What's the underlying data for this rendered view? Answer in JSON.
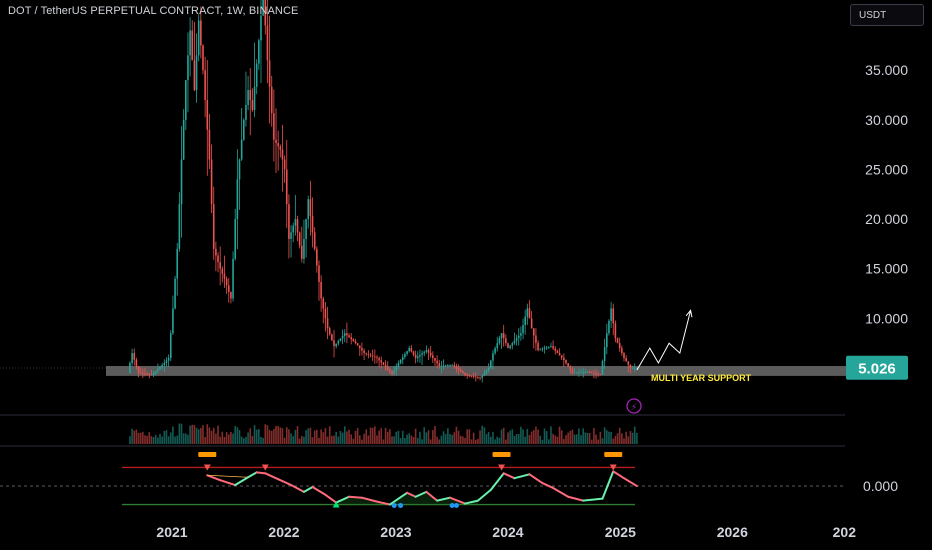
{
  "header": {
    "title": "DOT / TetherUS PERPETUAL CONTRACT, 1W, BINANCE",
    "currency_label": "USDT"
  },
  "price_axis": {
    "ticks": [
      "35.000",
      "30.000",
      "25.000",
      "20.000",
      "15.000",
      "10.000"
    ],
    "current_price": "5.026"
  },
  "oscillator_axis": {
    "zero_label": "0.000"
  },
  "time_axis": {
    "labels": [
      "2021",
      "2022",
      "2023",
      "2024",
      "2025",
      "2026",
      "202"
    ]
  },
  "annotations": {
    "support_label": "MULTI YEAR SUPPORT"
  },
  "colors": {
    "up": "#26a69a",
    "down": "#ef5350",
    "support_zone": "#6b6b6b",
    "support_text": "#ffeb3b",
    "price_badge": "#26a69a",
    "upper_band": "#b71c1c",
    "lower_band": "#2e7d32",
    "marker_orange": "#ff9800",
    "marker_purple": "#9c27b0"
  },
  "chart_data": {
    "type": "candlestick",
    "interval": "1W",
    "ylim": [
      0,
      40
    ],
    "last_price": 5.026,
    "support_zone": [
      4.2,
      5.2
    ],
    "price_path": [
      [
        "2020-08-17",
        4.5
      ],
      [
        "2020-08-31",
        6.5
      ],
      [
        "2020-09-21",
        4.5
      ],
      [
        "2020-11-02",
        4.3
      ],
      [
        "2020-12-14",
        5.5
      ],
      [
        "2020-12-28",
        6.0
      ],
      [
        "2021-01-11",
        11
      ],
      [
        "2021-01-25",
        17
      ],
      [
        "2021-02-08",
        26
      ],
      [
        "2021-02-22",
        34
      ],
      [
        "2021-03-08",
        39
      ],
      [
        "2021-03-22",
        33
      ],
      [
        "2021-04-05",
        40
      ],
      [
        "2021-04-19",
        35
      ],
      [
        "2021-05-10",
        26
      ],
      [
        "2021-05-24",
        17
      ],
      [
        "2021-06-14",
        15
      ],
      [
        "2021-06-28",
        14
      ],
      [
        "2021-07-19",
        12
      ],
      [
        "2021-08-09",
        24
      ],
      [
        "2021-08-30",
        30
      ],
      [
        "2021-09-13",
        33
      ],
      [
        "2021-09-27",
        31
      ],
      [
        "2021-10-18",
        38
      ],
      [
        "2021-11-01",
        43
      ],
      [
        "2021-11-15",
        36
      ],
      [
        "2021-12-06",
        28
      ],
      [
        "2021-12-27",
        27
      ],
      [
        "2022-01-10",
        25
      ],
      [
        "2022-01-24",
        18
      ],
      [
        "2022-02-14",
        20
      ],
      [
        "2022-03-07",
        16
      ],
      [
        "2022-03-28",
        22
      ],
      [
        "2022-04-18",
        17
      ],
      [
        "2022-05-09",
        12
      ],
      [
        "2022-05-30",
        9
      ],
      [
        "2022-06-20",
        7.2
      ],
      [
        "2022-07-25",
        8.5
      ],
      [
        "2022-08-29",
        7.5
      ],
      [
        "2022-09-26",
        6.5
      ],
      [
        "2022-11-07",
        6.0
      ],
      [
        "2022-12-26",
        4.4
      ],
      [
        "2023-01-16",
        5.5
      ],
      [
        "2023-02-20",
        7.0
      ],
      [
        "2023-03-13",
        6.0
      ],
      [
        "2023-04-17",
        6.8
      ],
      [
        "2023-05-29",
        5.2
      ],
      [
        "2023-07-10",
        5.3
      ],
      [
        "2023-08-21",
        4.3
      ],
      [
        "2023-10-09",
        4.0
      ],
      [
        "2023-11-06",
        5.0
      ],
      [
        "2023-11-20",
        6.5
      ],
      [
        "2023-12-18",
        8.5
      ],
      [
        "2024-01-08",
        7.0
      ],
      [
        "2024-02-19",
        8.5
      ],
      [
        "2024-03-11",
        11
      ],
      [
        "2024-03-25",
        9.0
      ],
      [
        "2024-04-15",
        6.8
      ],
      [
        "2024-05-27",
        7.2
      ],
      [
        "2024-07-08",
        5.8
      ],
      [
        "2024-08-05",
        4.5
      ],
      [
        "2024-09-23",
        4.6
      ],
      [
        "2024-11-04",
        4.3
      ],
      [
        "2024-11-25",
        8.5
      ],
      [
        "2024-12-09",
        11
      ],
      [
        "2024-12-23",
        8.0
      ],
      [
        "2025-01-20",
        6.0
      ],
      [
        "2025-02-10",
        5.0
      ],
      [
        "2025-02-24",
        5.026
      ]
    ],
    "projection": [
      [
        "2025-02-24",
        4.8
      ],
      [
        "2025-04-07",
        7.0
      ],
      [
        "2025-05-05",
        5.5
      ],
      [
        "2025-06-09",
        7.5
      ],
      [
        "2025-07-14",
        6.5
      ],
      [
        "2025-08-18",
        10.8
      ]
    ],
    "oscillator": {
      "path": [
        [
          "2021-04-26",
          0.55
        ],
        [
          "2021-06-07",
          0.3
        ],
        [
          "2021-07-26",
          0.05
        ],
        [
          "2021-09-06",
          0.45
        ],
        [
          "2021-10-04",
          0.7
        ],
        [
          "2021-11-01",
          0.65
        ],
        [
          "2021-12-13",
          0.35
        ],
        [
          "2022-01-24",
          0.05
        ],
        [
          "2022-03-07",
          -0.3
        ],
        [
          "2022-04-04",
          -0.05
        ],
        [
          "2022-05-16",
          -0.45
        ],
        [
          "2022-06-20",
          -0.85
        ],
        [
          "2022-08-01",
          -0.55
        ],
        [
          "2022-09-12",
          -0.6
        ],
        [
          "2022-10-31",
          -0.8
        ],
        [
          "2022-12-12",
          -0.95
        ],
        [
          "2023-02-06",
          -0.35
        ],
        [
          "2023-03-06",
          -0.55
        ],
        [
          "2023-04-10",
          -0.3
        ],
        [
          "2023-05-15",
          -0.75
        ],
        [
          "2023-06-26",
          -0.6
        ],
        [
          "2023-08-14",
          -0.9
        ],
        [
          "2023-09-25",
          -0.75
        ],
        [
          "2023-11-06",
          -0.2
        ],
        [
          "2023-12-18",
          0.65
        ],
        [
          "2024-01-22",
          0.4
        ],
        [
          "2024-03-11",
          0.6
        ],
        [
          "2024-04-22",
          0.15
        ],
        [
          "2024-05-27",
          -0.1
        ],
        [
          "2024-07-15",
          -0.55
        ],
        [
          "2024-09-02",
          -0.75
        ],
        [
          "2024-11-04",
          -0.65
        ],
        [
          "2024-12-09",
          0.75
        ],
        [
          "2025-01-13",
          0.4
        ],
        [
          "2025-02-24",
          0.0
        ]
      ],
      "upper_band": 0.95,
      "lower_band": -0.95,
      "sell_markers": [
        "2021-04-26",
        "2021-11-01",
        "2023-12-11",
        "2024-12-09"
      ],
      "buy_markers": [
        "2022-06-20"
      ],
      "dot_markers": [
        "2022-12-26",
        "2023-01-16",
        "2023-07-03",
        "2023-07-17"
      ]
    }
  }
}
